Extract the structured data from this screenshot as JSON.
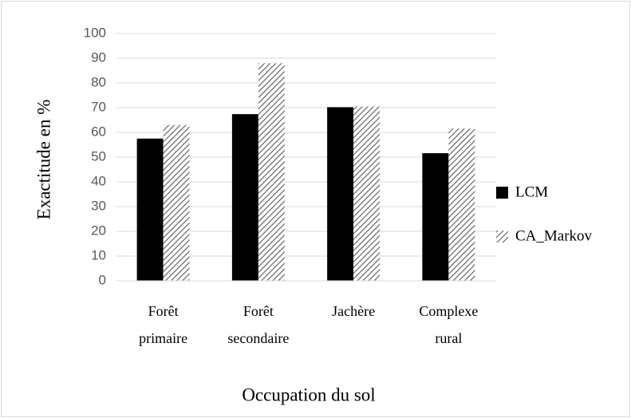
{
  "chart_data": {
    "type": "bar",
    "categories": [
      "Forêt primaire",
      "Forêt secondaire",
      "Jachère",
      "Complexe rural"
    ],
    "series": [
      {
        "name": "LCM",
        "color": "#000000",
        "values": [
          57.5,
          67.4,
          70.2,
          51.6
        ]
      },
      {
        "name": "CA_Markov",
        "color": "#595959",
        "values": [
          63,
          88,
          70.5,
          61.6
        ]
      }
    ],
    "ylim": [
      0,
      100
    ],
    "yticks": [
      0,
      10,
      20,
      30,
      40,
      50,
      60,
      70,
      80,
      90,
      100
    ],
    "grid": true,
    "xlabel": "Occupation du sol",
    "ylabel": "Exactitude en %",
    "legend": "right"
  }
}
